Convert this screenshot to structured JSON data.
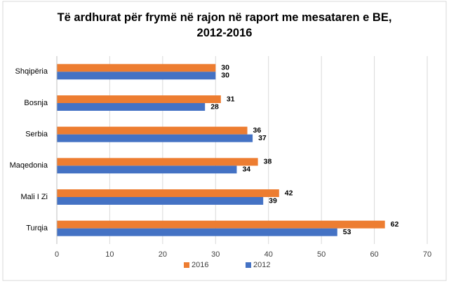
{
  "chart_data": {
    "type": "hbar",
    "title": "Të ardhurat për frymë në rajon në raport me mesataren e BE, 2012-2016",
    "categories": [
      "Shqipëria",
      "Bosnja",
      "Serbia",
      "Maqedonia",
      "Mali I Zi",
      "Turqia"
    ],
    "series": [
      {
        "name": "2016",
        "color": "#ed7d31",
        "values": [
          30,
          31,
          36,
          38,
          42,
          62
        ]
      },
      {
        "name": "2012",
        "color": "#4472c4",
        "values": [
          30,
          28,
          37,
          34,
          39,
          53
        ]
      }
    ],
    "xlim": [
      0,
      70
    ],
    "xticks": [
      0,
      10,
      20,
      30,
      40,
      50,
      60,
      70
    ],
    "grid": true,
    "legend": "bottom"
  }
}
